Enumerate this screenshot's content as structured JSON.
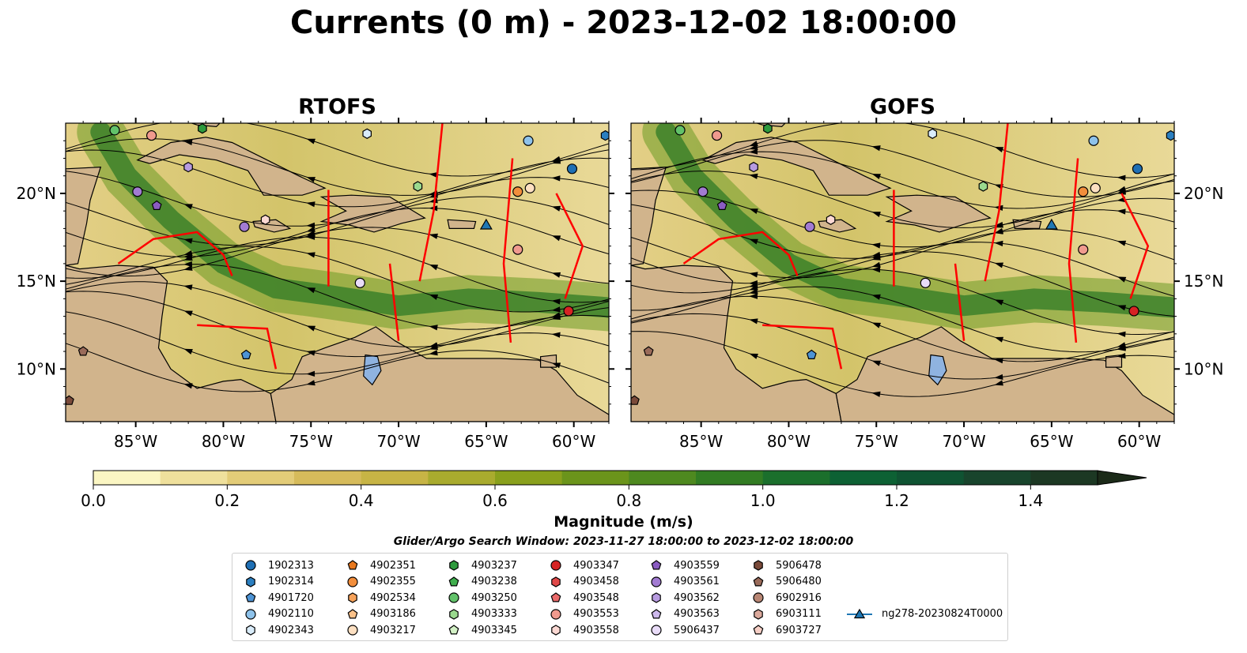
{
  "title": "Currents (0 m) - 2023-12-02 18:00:00",
  "panels": [
    {
      "title": "RTOFS"
    },
    {
      "title": "GOFS"
    }
  ],
  "axes": {
    "lon_ticks": [
      "85°W",
      "80°W",
      "75°W",
      "70°W",
      "65°W",
      "60°W"
    ],
    "lat_ticks": [
      "20°N",
      "15°N",
      "10°N"
    ],
    "lon_range": [
      -89,
      -58
    ],
    "lat_range": [
      7,
      24
    ]
  },
  "colorbar": {
    "label": "Magnitude (m/s)",
    "ticks": [
      "0.0",
      "0.2",
      "0.4",
      "0.6",
      "0.8",
      "1.0",
      "1.2",
      "1.4"
    ],
    "range": [
      0,
      1.5
    ],
    "extend": "max",
    "colors": [
      "#fbf6c3",
      "#efe09c",
      "#e3cc78",
      "#d6bb5b",
      "#c7b445",
      "#a9ab2e",
      "#89a01c",
      "#6b941b",
      "#4e891f",
      "#327c23",
      "#1b6f2c",
      "#0d6134",
      "#0f5332",
      "#18442c",
      "#1c3823",
      "#1b2a18"
    ]
  },
  "search_window": "Glider/Argo Search Window: 2023-11-27 18:00:00 to 2023-12-02 18:00:00",
  "legend": [
    {
      "label": "1902313",
      "marker": "circle",
      "color": "#1f6fb4"
    },
    {
      "label": "1902314",
      "marker": "hexagon",
      "color": "#2b7fc0"
    },
    {
      "label": "4901720",
      "marker": "pentagon",
      "color": "#4d93d4"
    },
    {
      "label": "4902110",
      "marker": "circle",
      "color": "#8ec2ea"
    },
    {
      "label": "4902343",
      "marker": "hexagon",
      "color": "#d9ecfa"
    },
    {
      "label": "4902351",
      "marker": "pentagon",
      "color": "#e8781e"
    },
    {
      "label": "4902355",
      "marker": "circle",
      "color": "#f28e3c"
    },
    {
      "label": "4902534",
      "marker": "hexagon",
      "color": "#f6a25a"
    },
    {
      "label": "4903186",
      "marker": "pentagon",
      "color": "#fac189"
    },
    {
      "label": "4903217",
      "marker": "circle",
      "color": "#fde0c2"
    },
    {
      "label": "4903237",
      "marker": "hexagon",
      "color": "#2e9a3d"
    },
    {
      "label": "4903238",
      "marker": "pentagon",
      "color": "#3fae4d"
    },
    {
      "label": "4903250",
      "marker": "circle",
      "color": "#62c26a"
    },
    {
      "label": "4903333",
      "marker": "hexagon",
      "color": "#9ad98e"
    },
    {
      "label": "4903345",
      "marker": "pentagon",
      "color": "#d3f1c6"
    },
    {
      "label": "4903347",
      "marker": "circle",
      "color": "#d62424"
    },
    {
      "label": "4903458",
      "marker": "hexagon",
      "color": "#e04848"
    },
    {
      "label": "4903548",
      "marker": "pentagon",
      "color": "#ea6a6a"
    },
    {
      "label": "4903553",
      "marker": "circle",
      "color": "#f09a8e"
    },
    {
      "label": "4903558",
      "marker": "hexagon",
      "color": "#fbd8d3"
    },
    {
      "label": "4903559",
      "marker": "pentagon",
      "color": "#8a5cc2"
    },
    {
      "label": "4903561",
      "marker": "circle",
      "color": "#a27bd2"
    },
    {
      "label": "4903562",
      "marker": "hexagon",
      "color": "#b79be0"
    },
    {
      "label": "4903563",
      "marker": "pentagon",
      "color": "#cdb8ec"
    },
    {
      "label": "5906437",
      "marker": "circle",
      "color": "#e9dcf8"
    },
    {
      "label": "5906478",
      "marker": "hexagon",
      "color": "#7a4a3a"
    },
    {
      "label": "5906480",
      "marker": "pentagon",
      "color": "#9a6b5a"
    },
    {
      "label": "6902916",
      "marker": "circle",
      "color": "#b88674"
    },
    {
      "label": "6903111",
      "marker": "hexagon",
      "color": "#dba99c"
    },
    {
      "label": "6903727",
      "marker": "pentagon",
      "color": "#f6cfc6"
    },
    {
      "label": "ng278-20230824T0000",
      "marker": "triangle-line",
      "color": "#1f77b4"
    }
  ],
  "floats": [
    {
      "lon": -86.2,
      "lat": 23.6,
      "marker": "circle",
      "color": "#62c26a"
    },
    {
      "lon": -84.1,
      "lat": 23.3,
      "marker": "circle",
      "color": "#f09a8e"
    },
    {
      "lon": -81.2,
      "lat": 23.7,
      "marker": "hexagon",
      "color": "#2e9a3d"
    },
    {
      "lon": -82.0,
      "lat": 21.5,
      "marker": "hexagon",
      "color": "#b79be0"
    },
    {
      "lon": -84.9,
      "lat": 20.1,
      "marker": "circle",
      "color": "#a27bd2"
    },
    {
      "lon": -83.8,
      "lat": 19.3,
      "marker": "pentagon",
      "color": "#8a5cc2"
    },
    {
      "lon": -77.6,
      "lat": 18.5,
      "marker": "hexagon",
      "color": "#fbd8d3"
    },
    {
      "lon": -78.8,
      "lat": 18.1,
      "marker": "circle",
      "color": "#a27bd2"
    },
    {
      "lon": -71.8,
      "lat": 23.4,
      "marker": "hexagon",
      "color": "#d9ecfa"
    },
    {
      "lon": -68.9,
      "lat": 20.4,
      "marker": "hexagon",
      "color": "#9ad98e"
    },
    {
      "lon": -62.6,
      "lat": 23.0,
      "marker": "circle",
      "color": "#8ec2ea"
    },
    {
      "lon": -60.1,
      "lat": 21.4,
      "marker": "circle",
      "color": "#1f6fb4"
    },
    {
      "lon": -58.2,
      "lat": 23.3,
      "marker": "hexagon",
      "color": "#2b7fc0"
    },
    {
      "lon": -63.2,
      "lat": 20.1,
      "marker": "circle",
      "color": "#f28e3c"
    },
    {
      "lon": -62.5,
      "lat": 20.3,
      "marker": "circle",
      "color": "#fde0c2"
    },
    {
      "lon": -63.2,
      "lat": 16.8,
      "marker": "circle",
      "color": "#f09a8e"
    },
    {
      "lon": -72.2,
      "lat": 14.9,
      "marker": "circle",
      "color": "#e9dcf8"
    },
    {
      "lon": -60.3,
      "lat": 13.3,
      "marker": "circle",
      "color": "#d62424"
    },
    {
      "lon": -78.7,
      "lat": 10.8,
      "marker": "pentagon",
      "color": "#4d93d4"
    },
    {
      "lon": -88.0,
      "lat": 11.0,
      "marker": "pentagon",
      "color": "#9a6b5a"
    },
    {
      "lon": -88.8,
      "lat": 8.2,
      "marker": "pentagon",
      "color": "#7a4a3a"
    }
  ],
  "glider": {
    "lon": -65.0,
    "lat": 18.2,
    "color": "#1f77b4"
  }
}
